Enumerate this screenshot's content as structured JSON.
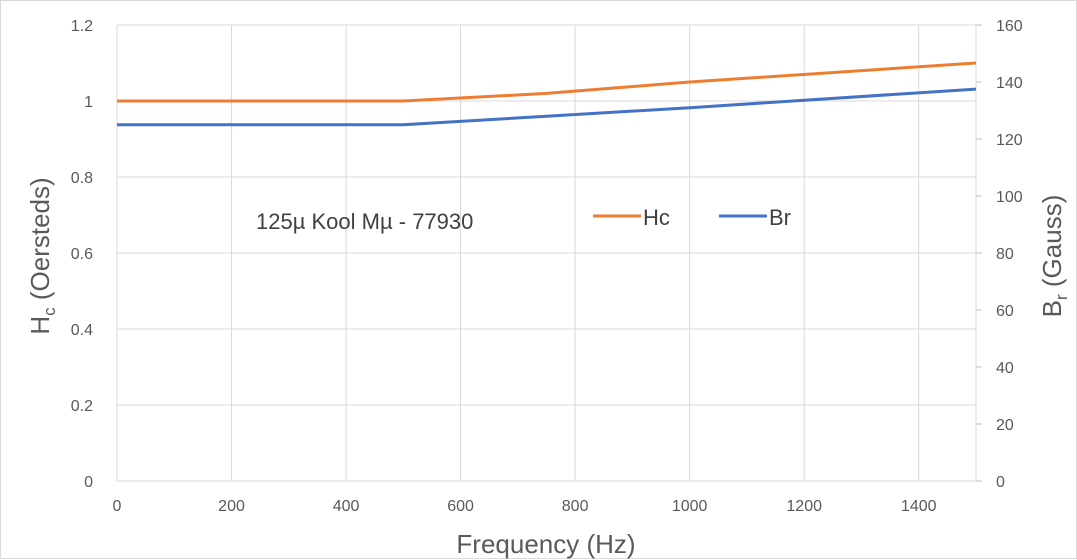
{
  "chart_data": {
    "type": "line",
    "x": [
      0,
      500,
      750,
      1000,
      1500
    ],
    "xlabel": "Frequency (Hz)",
    "xlim": [
      0,
      1500
    ],
    "xticks": [
      "0",
      "200",
      "400",
      "600",
      "800",
      "1000",
      "1200",
      "1400"
    ],
    "ylabel_left": {
      "main": "H",
      "sub": "c",
      "rest": " (Oersteds)"
    },
    "ylim_left": [
      0,
      1.2
    ],
    "yticks_left": [
      "0",
      "0.2",
      "0.4",
      "0.6",
      "0.8",
      "1",
      "1.2"
    ],
    "ylabel_right": {
      "main": "B",
      "sub": "r",
      "rest": " (Gauss)"
    },
    "ylim_right": [
      0,
      160
    ],
    "yticks_right": [
      "0",
      "20",
      "40",
      "60",
      "80",
      "100",
      "120",
      "140",
      "160"
    ],
    "annotation": "125µ Kool Mµ - 77930",
    "grid": true,
    "legend_position": "inside-center-right",
    "series": [
      {
        "name": "Hc",
        "axis": "left",
        "color": "#ed7d31",
        "values": [
          1.0,
          1.0,
          1.02,
          1.05,
          1.1
        ]
      },
      {
        "name": "Br",
        "axis": "right",
        "color": "#4472c4",
        "values": [
          125,
          125,
          128,
          131,
          137.5
        ]
      }
    ]
  }
}
